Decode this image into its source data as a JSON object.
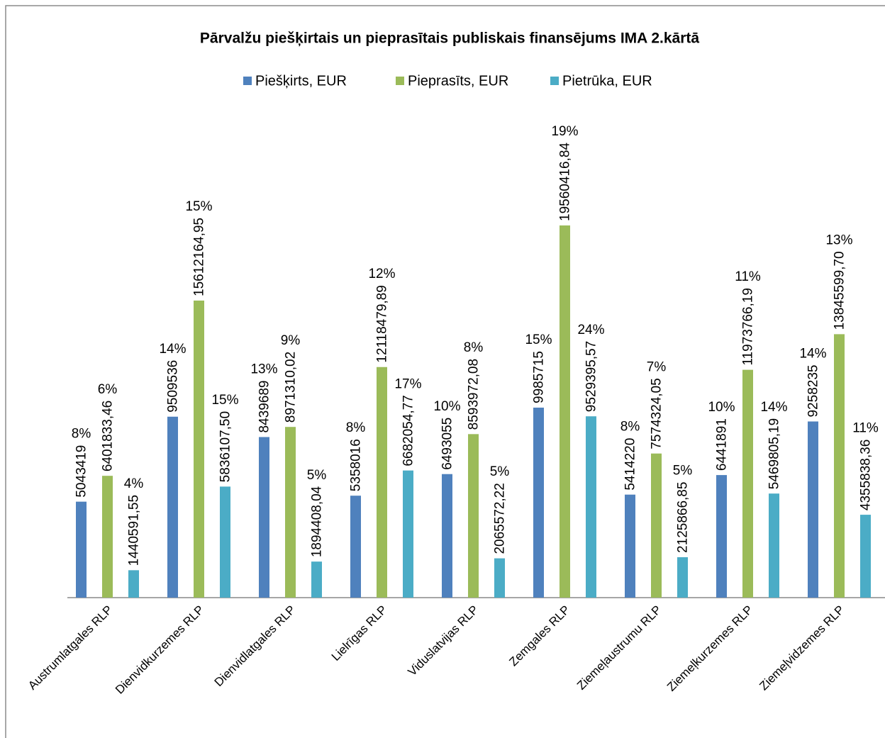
{
  "chart_data": {
    "type": "bar",
    "title": "Pārvalžu piešķirtais un pieprasītais publiskais finansējums IMA 2.kārtā",
    "categories": [
      "Austrumlatgales RLP",
      "Dienvidkurzemes RLP",
      "Dienvidlatgales RLP",
      "Lielrīgas RLP",
      "Viduslatvijas RLP",
      "Zemgales RLP",
      "Ziemeļaustrumu RLP",
      "Ziemeļkurzemes RLP",
      "Ziemeļvidzemes RLP"
    ],
    "series": [
      {
        "name": "Piešķirts, EUR",
        "color": "#4f81bd",
        "values": [
          5043419,
          9509536,
          8439689,
          5358016,
          6493055,
          9985715,
          5414220,
          6441891,
          9258235
        ],
        "percent_labels": [
          "8%",
          "14%",
          "13%",
          "8%",
          "10%",
          "15%",
          "8%",
          "10%",
          "14%"
        ]
      },
      {
        "name": "Pieprasīts, EUR",
        "color": "#9bbb59",
        "values": [
          6401833.46,
          15612164.95,
          8971310.02,
          12118479.89,
          8593972.08,
          19560416.84,
          7574324.05,
          11973766.19,
          13845599.7
        ],
        "value_labels": [
          "6401833,46",
          "15612164,95",
          "8971310,02",
          "12118479,89",
          "8593972,08",
          "19560416,84",
          "7574324,05",
          "11973766,19",
          "13845599,70"
        ],
        "percent_labels": [
          "6%",
          "15%",
          "9%",
          "12%",
          "8%",
          "19%",
          "7%",
          "11%",
          "13%"
        ]
      },
      {
        "name": "Pietrūka, EUR",
        "color": "#4bacc6",
        "values": [
          1440591.55,
          5836107.5,
          1894408.04,
          6682054.77,
          2065572.22,
          9529395.57,
          2125866.85,
          5469805.19,
          4355838.36
        ],
        "value_labels": [
          "1440591,55",
          "5836107,50",
          "1894408,04",
          "6682054,77",
          "2065572,22",
          "9529395,57",
          "2125866,85",
          "5469805,19",
          "4355838,36"
        ],
        "percent_labels": [
          "4%",
          "15%",
          "5%",
          "17%",
          "5%",
          "24%",
          "5%",
          "14%",
          "11%"
        ]
      }
    ]
  }
}
